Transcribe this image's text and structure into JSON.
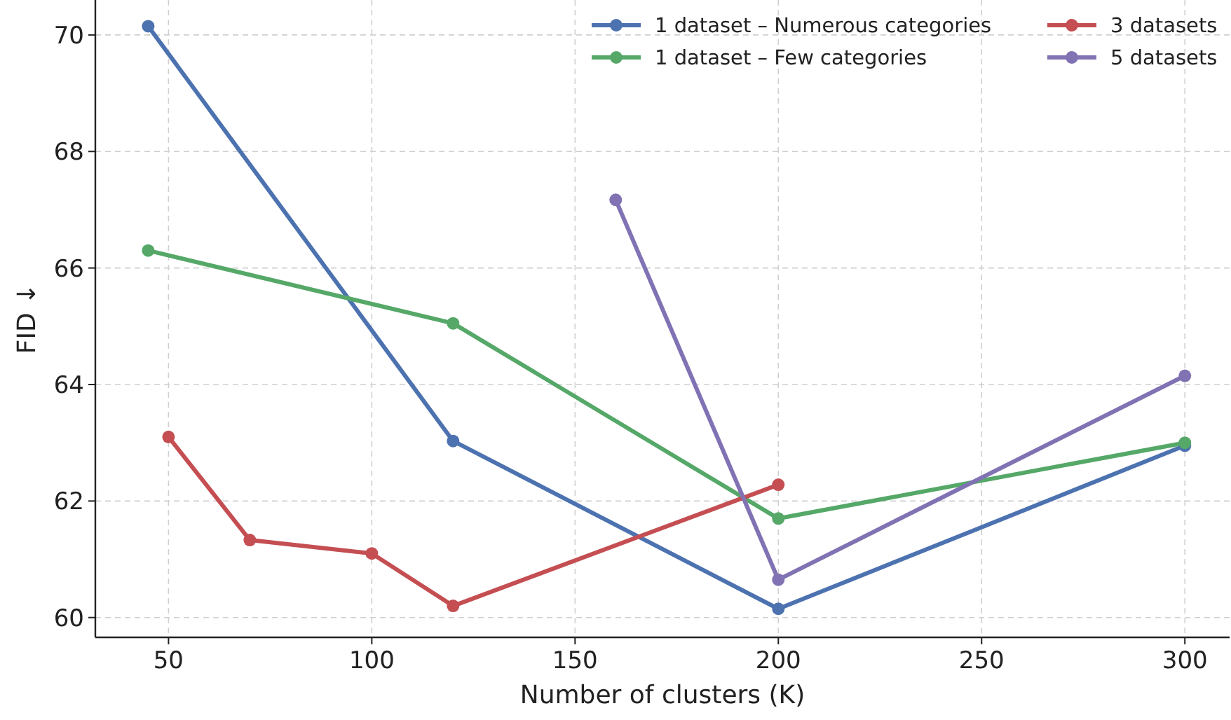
{
  "chart_data": {
    "type": "line",
    "xlabel": "Number of clusters (K)",
    "ylabel": "FID ↓",
    "xlim": [
      32,
      311
    ],
    "ylim": [
      59.66,
      70.6
    ],
    "xticks": [
      50,
      100,
      150,
      200,
      250,
      300
    ],
    "yticks": [
      60,
      62,
      64,
      66,
      68,
      70
    ],
    "grid": true,
    "legend": "top right",
    "marker": "circle",
    "line_style": "solid",
    "series": [
      {
        "name": "1 dataset – Numerous categories",
        "color": "#4c72b0",
        "x": [
          45,
          120,
          200,
          300
        ],
        "values": [
          70.15,
          63.03,
          60.15,
          62.95
        ]
      },
      {
        "name": "1 dataset – Few categories",
        "color": "#55a868",
        "x": [
          45,
          120,
          200,
          300
        ],
        "values": [
          66.3,
          65.05,
          61.7,
          63.0
        ]
      },
      {
        "name": "3 datasets",
        "color": "#c44e52",
        "x": [
          50,
          70,
          100,
          120,
          200
        ],
        "values": [
          63.1,
          61.33,
          61.1,
          60.2,
          62.28
        ]
      },
      {
        "name": "5 datasets",
        "color": "#8172b3",
        "x": [
          160,
          200,
          300
        ],
        "values": [
          67.17,
          60.65,
          64.15
        ]
      }
    ]
  }
}
